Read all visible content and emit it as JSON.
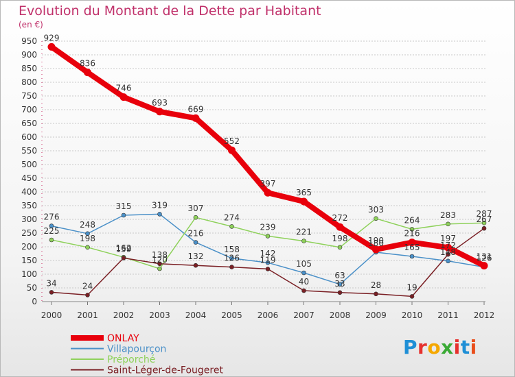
{
  "title": "Evolution du Montant de la Dette par Habitant",
  "unit_label": "(en €)",
  "brand": {
    "text": "Proxiti",
    "colors": [
      "#1f8fd6",
      "#e6312e",
      "#f5a800",
      "#3aaa35",
      "#e6312e",
      "#1f8fd6",
      "#e94e1b"
    ]
  },
  "colors": {
    "title": "#c0306a",
    "grid": "#c8c8c8",
    "axis": "#555555"
  },
  "chart_data": {
    "type": "line",
    "title": "Evolution du Montant de la Dette par Habitant",
    "ylabel": "(en €)",
    "xlabel": "",
    "x": [
      "2000",
      "2001",
      "2002",
      "2003",
      "2004",
      "2005",
      "2006",
      "2007",
      "2008",
      "2009",
      "2010",
      "2011",
      "2012"
    ],
    "ylim": [
      0,
      950
    ],
    "yticks": [
      0,
      50,
      100,
      150,
      200,
      250,
      300,
      350,
      400,
      450,
      500,
      550,
      600,
      650,
      700,
      750,
      800,
      850,
      900,
      950
    ],
    "grid": true,
    "legend_position": "bottom-left",
    "series": [
      {
        "name": "ONLAY",
        "color": "#e8000b",
        "values": [
          929,
          836,
          746,
          693,
          669,
          552,
          397,
          365,
          272,
          190,
          216,
          197,
          131
        ]
      },
      {
        "name": "Villapourçon",
        "color": "#4a90c8",
        "values": [
          276,
          248,
          315,
          319,
          216,
          158,
          142,
          105,
          63,
          180,
          165,
          148,
          126
        ]
      },
      {
        "name": "Préporché",
        "color": "#8ed15a",
        "values": [
          225,
          198,
          162,
          120,
          307,
          274,
          239,
          221,
          198,
          303,
          264,
          283,
          287
        ]
      },
      {
        "name": "Saint-Léger-de-Fougeret",
        "color": "#7a1f24",
        "values": [
          34,
          24,
          159,
          138,
          132,
          126,
          119,
          40,
          33,
          28,
          19,
          172,
          267
        ]
      }
    ]
  }
}
